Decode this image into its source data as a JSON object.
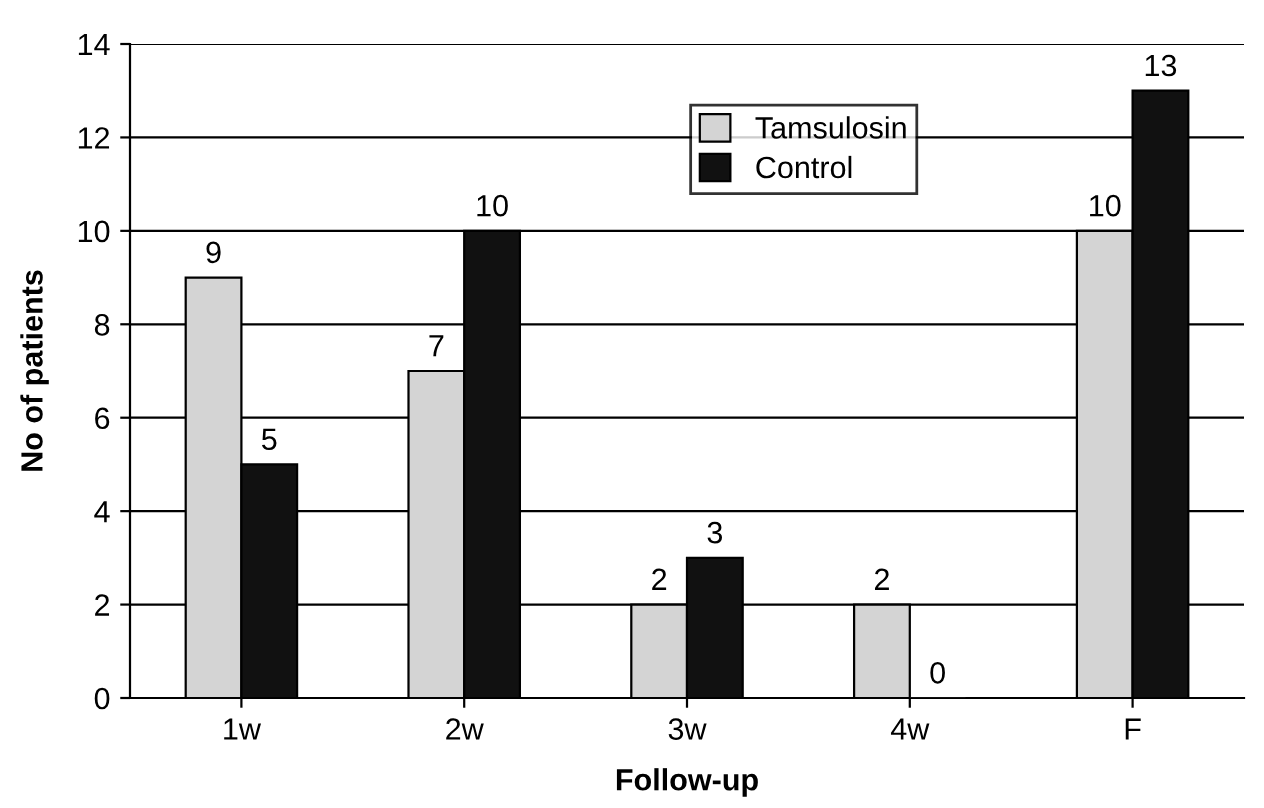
{
  "chart_data": {
    "type": "bar",
    "xlabel": "Follow-up",
    "ylabel": "No of patients",
    "categories": [
      "1w",
      "2w",
      "3w",
      "4w",
      "F"
    ],
    "series": [
      {
        "name": "Tamsulosin",
        "color": "#d4d4d4",
        "values": [
          9,
          7,
          2,
          2,
          10
        ]
      },
      {
        "name": "Control",
        "color": "#111111",
        "values": [
          5,
          10,
          3,
          0,
          13
        ]
      }
    ],
    "ylim": [
      0,
      14
    ],
    "yticks": [
      0,
      2,
      4,
      6,
      8,
      10,
      12,
      14
    ],
    "grid": "y",
    "legend": "top right",
    "data_labels": true
  }
}
